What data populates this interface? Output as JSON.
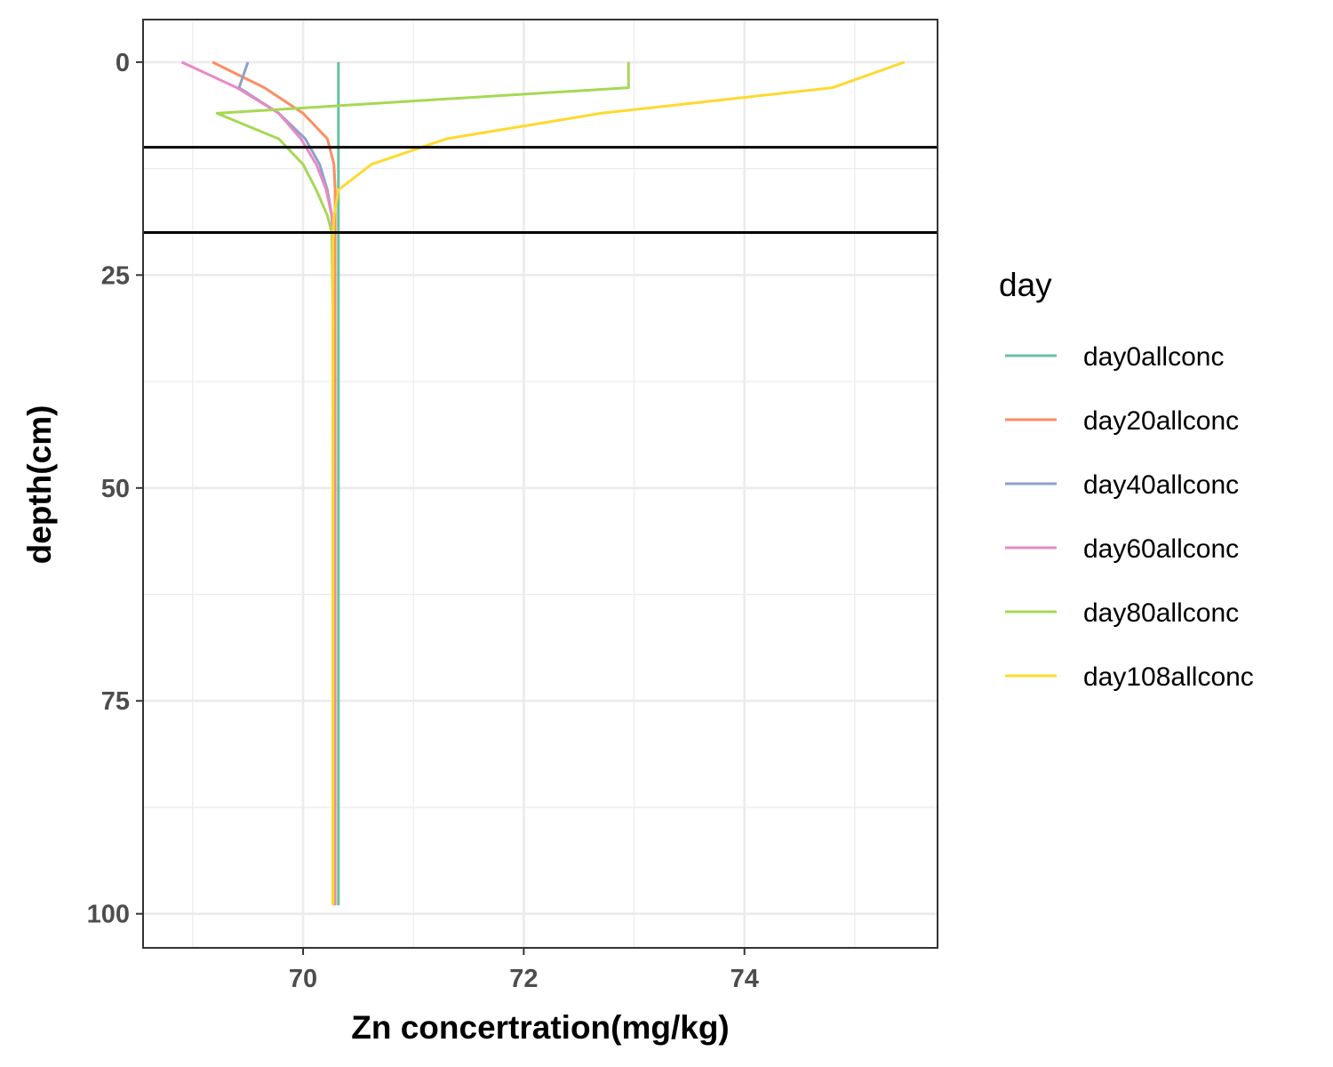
{
  "chart_data": {
    "type": "line",
    "orientation": "depth-profile",
    "title": "",
    "xlabel": "Zn concertration(mg/kg)",
    "ylabel": "depth(cm)",
    "xlim": [
      68.55,
      75.75
    ],
    "ylim": [
      104,
      -5
    ],
    "y_reversed": true,
    "x_ticks": [
      70,
      72,
      74
    ],
    "y_ticks": [
      0,
      25,
      50,
      75,
      100
    ],
    "grid": true,
    "legend": {
      "title": "day",
      "position": "right"
    },
    "reference_lines": {
      "depths": [
        10,
        20
      ]
    },
    "series": [
      {
        "name": "day0allconc",
        "color": "#66c2a5",
        "points": [
          [
            70.32,
            0
          ],
          [
            70.32,
            10
          ],
          [
            70.32,
            20
          ],
          [
            70.32,
            50
          ],
          [
            70.32,
            75
          ],
          [
            70.32,
            99
          ]
        ]
      },
      {
        "name": "day20allconc",
        "color": "#fc8d62",
        "points": [
          [
            69.18,
            0
          ],
          [
            69.65,
            3
          ],
          [
            70.0,
            6
          ],
          [
            70.22,
            9
          ],
          [
            70.28,
            12
          ],
          [
            70.29,
            15
          ],
          [
            70.29,
            18
          ],
          [
            70.29,
            21
          ],
          [
            70.29,
            30
          ],
          [
            70.29,
            50
          ],
          [
            70.29,
            75
          ],
          [
            70.29,
            99
          ]
        ]
      },
      {
        "name": "day40allconc",
        "color": "#8da0cb",
        "points": [
          [
            69.5,
            0
          ],
          [
            69.42,
            3
          ],
          [
            69.78,
            6
          ],
          [
            70.02,
            9
          ],
          [
            70.15,
            12
          ],
          [
            70.22,
            15
          ],
          [
            70.26,
            18
          ],
          [
            70.27,
            21
          ],
          [
            70.27,
            30
          ],
          [
            70.28,
            50
          ],
          [
            70.28,
            75
          ],
          [
            70.28,
            99
          ]
        ]
      },
      {
        "name": "day60allconc",
        "color": "#e78ac3",
        "points": [
          [
            68.9,
            0
          ],
          [
            69.4,
            3
          ],
          [
            69.78,
            6
          ],
          [
            69.98,
            9
          ],
          [
            70.12,
            12
          ],
          [
            70.21,
            15
          ],
          [
            70.26,
            18
          ],
          [
            70.27,
            21
          ],
          [
            70.27,
            30
          ],
          [
            70.28,
            50
          ],
          [
            70.28,
            75
          ],
          [
            70.28,
            99
          ]
        ]
      },
      {
        "name": "day80allconc",
        "color": "#a6d854",
        "points": [
          [
            72.95,
            0
          ],
          [
            72.95,
            3
          ],
          [
            69.22,
            6
          ],
          [
            69.78,
            9
          ],
          [
            70.0,
            12
          ],
          [
            70.12,
            15
          ],
          [
            70.22,
            18
          ],
          [
            70.26,
            20
          ],
          [
            70.27,
            30
          ],
          [
            70.27,
            50
          ],
          [
            70.27,
            75
          ],
          [
            70.27,
            99
          ]
        ]
      },
      {
        "name": "day108allconc",
        "color": "#ffd92f",
        "points": [
          [
            75.45,
            0
          ],
          [
            74.8,
            3
          ],
          [
            72.7,
            6
          ],
          [
            71.3,
            9
          ],
          [
            70.62,
            12
          ],
          [
            70.32,
            15
          ],
          [
            70.28,
            18
          ],
          [
            70.27,
            21
          ],
          [
            70.27,
            30
          ],
          [
            70.27,
            50
          ],
          [
            70.27,
            75
          ],
          [
            70.27,
            99
          ]
        ]
      }
    ]
  }
}
